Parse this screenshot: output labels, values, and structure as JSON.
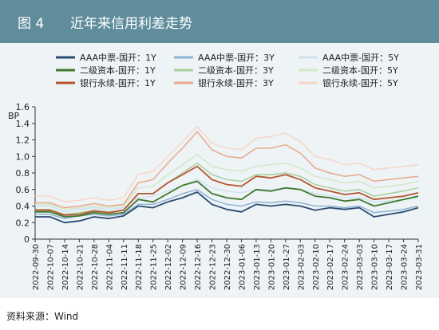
{
  "figure": {
    "number": "图 4",
    "title": "近年来信用利差走势"
  },
  "source": "资料来源：Wind",
  "chart_data": {
    "type": "line",
    "ylabel": "BP",
    "ylim": [
      0,
      1.6
    ],
    "yticks": [
      0,
      0.2,
      0.4,
      0.6,
      0.8,
      1.0,
      1.2,
      1.4,
      1.6
    ],
    "ytick_labels": [
      "0",
      "0.2",
      "0.4",
      "0.6",
      "0.8",
      "1.0",
      "1.2",
      "1.4",
      "1.6"
    ],
    "legend_position": "top",
    "grid": false,
    "x_labels": [
      "2022-09-30",
      "2022-10-07",
      "2022-10-14",
      "2022-10-21",
      "2022-10-28",
      "2022-11-04",
      "2022-11-11",
      "2022-11-18",
      "2022-11-25",
      "2022-12-02",
      "2022-12-09",
      "2022-12-16",
      "2022-12-23",
      "2022-12-30",
      "2023-01-06",
      "2023-01-13",
      "2023-01-20",
      "2023-01-27",
      "2023-02-03",
      "2023-02-10",
      "2023-02-17",
      "2023-02-24",
      "2023-03-03",
      "2023-03-10",
      "2023-03-17",
      "2023-03-24",
      "2023-03-31"
    ],
    "series": [
      {
        "name": "AAA中票-国开：1Y",
        "color": "#2b4a73",
        "width": 1.8,
        "values": [
          0.27,
          0.27,
          0.2,
          0.22,
          0.27,
          0.25,
          0.28,
          0.4,
          0.38,
          0.45,
          0.5,
          0.57,
          0.42,
          0.36,
          0.33,
          0.42,
          0.4,
          0.42,
          0.4,
          0.35,
          0.38,
          0.36,
          0.38,
          0.27,
          0.3,
          0.33,
          0.38
        ]
      },
      {
        "name": "AAA中票-国开：3Y",
        "color": "#8fb3d4",
        "width": 1.5,
        "values": [
          0.3,
          0.3,
          0.25,
          0.28,
          0.3,
          0.28,
          0.3,
          0.42,
          0.42,
          0.48,
          0.55,
          0.6,
          0.48,
          0.42,
          0.4,
          0.45,
          0.44,
          0.46,
          0.44,
          0.4,
          0.4,
          0.38,
          0.4,
          0.32,
          0.34,
          0.36,
          0.4
        ]
      },
      {
        "name": "AAA中票-国开：5Y",
        "color": "#cfe2ee",
        "width": 1.5,
        "values": [
          0.4,
          0.4,
          0.33,
          0.36,
          0.38,
          0.36,
          0.38,
          0.5,
          0.52,
          0.58,
          0.65,
          0.72,
          0.62,
          0.58,
          0.56,
          0.6,
          0.6,
          0.62,
          0.6,
          0.55,
          0.52,
          0.5,
          0.5,
          0.45,
          0.46,
          0.48,
          0.5
        ]
      },
      {
        "name": "二级资本-国开：1Y",
        "color": "#3e7a2e",
        "width": 1.8,
        "values": [
          0.33,
          0.33,
          0.27,
          0.28,
          0.32,
          0.3,
          0.32,
          0.48,
          0.45,
          0.55,
          0.65,
          0.7,
          0.55,
          0.5,
          0.48,
          0.6,
          0.58,
          0.62,
          0.6,
          0.52,
          0.5,
          0.46,
          0.48,
          0.4,
          0.44,
          0.48,
          0.52
        ]
      },
      {
        "name": "二级资本-国开：3Y",
        "color": "#a9cf9a",
        "width": 1.5,
        "values": [
          0.36,
          0.36,
          0.3,
          0.32,
          0.35,
          0.33,
          0.35,
          0.55,
          0.55,
          0.68,
          0.8,
          0.92,
          0.78,
          0.72,
          0.7,
          0.78,
          0.78,
          0.8,
          0.76,
          0.66,
          0.62,
          0.58,
          0.6,
          0.52,
          0.55,
          0.58,
          0.62
        ]
      },
      {
        "name": "二级资本-国开：5Y",
        "color": "#d3e7c8",
        "width": 1.5,
        "values": [
          0.42,
          0.42,
          0.36,
          0.38,
          0.4,
          0.38,
          0.4,
          0.62,
          0.64,
          0.78,
          0.9,
          1.02,
          0.88,
          0.84,
          0.82,
          0.88,
          0.9,
          0.92,
          0.86,
          0.76,
          0.72,
          0.68,
          0.7,
          0.62,
          0.64,
          0.66,
          0.7
        ]
      },
      {
        "name": "银行永续-国开：1Y",
        "color": "#b5562f",
        "width": 1.8,
        "values": [
          0.35,
          0.35,
          0.29,
          0.3,
          0.34,
          0.32,
          0.35,
          0.55,
          0.55,
          0.68,
          0.78,
          0.88,
          0.72,
          0.66,
          0.64,
          0.76,
          0.74,
          0.78,
          0.72,
          0.62,
          0.58,
          0.54,
          0.56,
          0.48,
          0.5,
          0.52,
          0.56
        ]
      },
      {
        "name": "银行永续-国开：3Y",
        "color": "#e9a88c",
        "width": 1.5,
        "values": [
          0.44,
          0.44,
          0.38,
          0.4,
          0.43,
          0.4,
          0.42,
          0.68,
          0.72,
          0.92,
          1.1,
          1.3,
          1.08,
          1.0,
          0.98,
          1.1,
          1.1,
          1.14,
          1.04,
          0.86,
          0.8,
          0.76,
          0.78,
          0.7,
          0.72,
          0.74,
          0.76
        ]
      },
      {
        "name": "银行永续-国开：5Y",
        "color": "#f7d6c6",
        "width": 1.5,
        "values": [
          0.52,
          0.52,
          0.45,
          0.47,
          0.5,
          0.47,
          0.5,
          0.78,
          0.82,
          1.0,
          1.18,
          1.36,
          1.16,
          1.1,
          1.08,
          1.22,
          1.24,
          1.28,
          1.18,
          1.0,
          0.96,
          0.9,
          0.92,
          0.84,
          0.86,
          0.88,
          0.9
        ]
      }
    ]
  }
}
